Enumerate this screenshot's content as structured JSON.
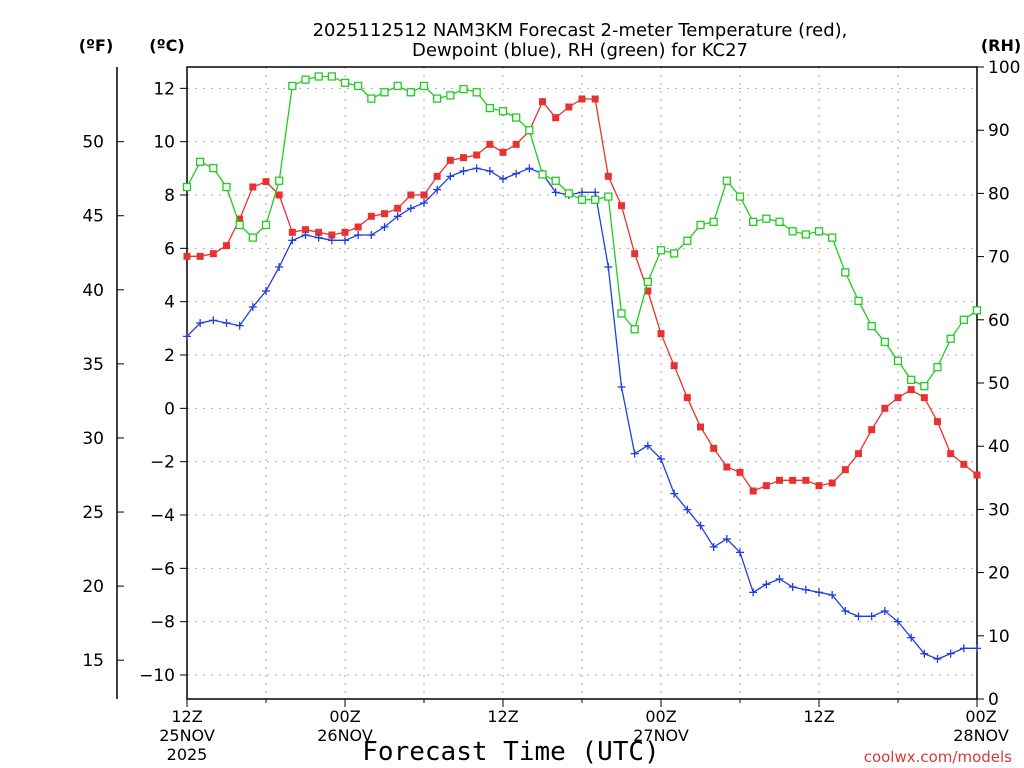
{
  "chart_data": {
    "type": "line",
    "title_line1": "2025112512 NAM3KM Forecast 2-meter Temperature (red),",
    "title_line2": "Dewpoint (blue), RH (green) for KC27",
    "units": {
      "fahrenheit": "(ºF)",
      "celsius": "(ºC)",
      "rh": "(RH)"
    },
    "xlabel": "Forecast Time (UTC)",
    "credit": "coolwx.com/models",
    "x_ticks": [
      {
        "hour": 0,
        "line1": "12Z",
        "line2": "25NOV",
        "line3": "2025"
      },
      {
        "hour": 12,
        "line1": "00Z",
        "line2": "26NOV",
        "line3": ""
      },
      {
        "hour": 24,
        "line1": "12Z",
        "line2": "",
        "line3": ""
      },
      {
        "hour": 36,
        "line1": "00Z",
        "line2": "27NOV",
        "line3": ""
      },
      {
        "hour": 48,
        "line1": "12Z",
        "line2": "",
        "line3": ""
      },
      {
        "hour": 60,
        "line1": "00Z",
        "line2": "28NOV",
        "line3": ""
      }
    ],
    "x_range_hours": [
      0,
      60
    ],
    "celsius_axis": {
      "range": [
        -10.9,
        12.8
      ],
      "ticks": [
        -10,
        -8,
        -6,
        -4,
        -2,
        0,
        2,
        4,
        6,
        8,
        10,
        12
      ]
    },
    "fahrenheit_axis": {
      "ticks": [
        15,
        20,
        25,
        30,
        35,
        40,
        45,
        50
      ]
    },
    "rh_axis": {
      "range": [
        0,
        100
      ],
      "ticks": [
        0,
        10,
        20,
        30,
        40,
        50,
        60,
        70,
        80,
        90,
        100
      ]
    },
    "series": [
      {
        "name": "Temperature",
        "color": "#e8322f",
        "axis": "celsius",
        "marker": "filled-square",
        "values": [
          5.7,
          5.7,
          5.8,
          6.1,
          7.1,
          8.3,
          8.5,
          8.0,
          6.6,
          6.7,
          6.6,
          6.5,
          6.6,
          6.8,
          7.2,
          7.3,
          7.5,
          8.0,
          8.0,
          8.7,
          9.3,
          9.4,
          9.5,
          9.9,
          9.6,
          9.9,
          10.4,
          11.5,
          10.9,
          11.3,
          11.6,
          11.6,
          8.7,
          7.6,
          5.8,
          4.4,
          2.8,
          1.6,
          0.4,
          -0.7,
          -1.5,
          -2.2,
          -2.4,
          -3.1,
          -2.9,
          -2.7,
          -2.7,
          -2.7,
          -2.9,
          -2.8,
          -2.3,
          -1.7,
          -0.8,
          0.0,
          0.4,
          0.7,
          0.4,
          -0.5,
          -1.7,
          -2.1,
          -2.5
        ]
      },
      {
        "name": "Dewpoint",
        "color": "#1f3fe0",
        "axis": "celsius",
        "marker": "plus",
        "values": [
          2.7,
          3.2,
          3.3,
          3.2,
          3.1,
          3.8,
          4.4,
          5.3,
          6.3,
          6.5,
          6.4,
          6.3,
          6.3,
          6.5,
          6.5,
          6.8,
          7.2,
          7.5,
          7.7,
          8.2,
          8.7,
          8.9,
          9.0,
          8.9,
          8.6,
          8.8,
          9.0,
          8.8,
          8.1,
          8.0,
          8.1,
          8.1,
          5.3,
          0.8,
          -1.7,
          -1.4,
          -1.9,
          -3.2,
          -3.8,
          -4.4,
          -5.2,
          -4.9,
          -5.4,
          -6.9,
          -6.6,
          -6.4,
          -6.7,
          -6.8,
          -6.9,
          -7.0,
          -7.6,
          -7.8,
          -7.8,
          -7.6,
          -8.0,
          -8.6,
          -9.2,
          -9.4,
          -9.2,
          -9.0,
          -9.0
        ]
      },
      {
        "name": "RH",
        "color": "#22cc22",
        "axis": "rh",
        "marker": "open-square",
        "values": [
          81,
          85,
          84,
          81,
          75,
          73,
          75,
          82,
          97,
          98,
          98.5,
          98.5,
          97.5,
          97,
          95,
          96,
          97,
          96,
          97,
          95,
          95.5,
          96.5,
          96,
          93.5,
          93,
          92,
          90,
          83,
          82,
          80,
          79,
          79,
          79.5,
          61,
          58.5,
          66,
          71,
          70.5,
          72.5,
          75,
          75.5,
          82,
          79.5,
          75.5,
          76,
          75.5,
          74,
          73.5,
          74,
          73,
          67.5,
          63,
          59,
          56.5,
          53.5,
          50.5,
          49.5,
          52.5,
          57,
          60,
          61.5
        ]
      }
    ]
  }
}
